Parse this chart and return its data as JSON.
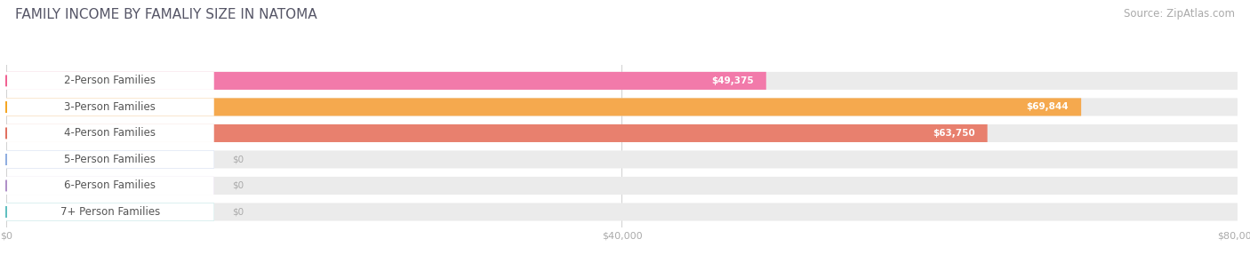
{
  "title": "FAMILY INCOME BY FAMALIY SIZE IN NATOMA",
  "source": "Source: ZipAtlas.com",
  "categories": [
    "2-Person Families",
    "3-Person Families",
    "4-Person Families",
    "5-Person Families",
    "6-Person Families",
    "7+ Person Families"
  ],
  "values": [
    49375,
    69844,
    63750,
    0,
    0,
    0
  ],
  "bar_colors": [
    "#f27aaa",
    "#f5a94e",
    "#e8806e",
    "#a8bce8",
    "#c3a8d8",
    "#7ecfcf"
  ],
  "dot_colors": [
    "#f06292",
    "#f5a623",
    "#e07060",
    "#90aee0",
    "#b090c8",
    "#60bfc0"
  ],
  "value_labels": [
    "$49,375",
    "$69,844",
    "$63,750",
    "$0",
    "$0",
    "$0"
  ],
  "xlim": [
    0,
    80000
  ],
  "xticks": [
    0,
    40000,
    80000
  ],
  "xticklabels": [
    "$0",
    "$40,000",
    "$80,000"
  ],
  "background_color": "#ffffff",
  "bar_bg_color": "#ebebeb",
  "title_fontsize": 11,
  "source_fontsize": 8.5,
  "label_fontsize": 8.5,
  "value_fontsize": 7.5
}
